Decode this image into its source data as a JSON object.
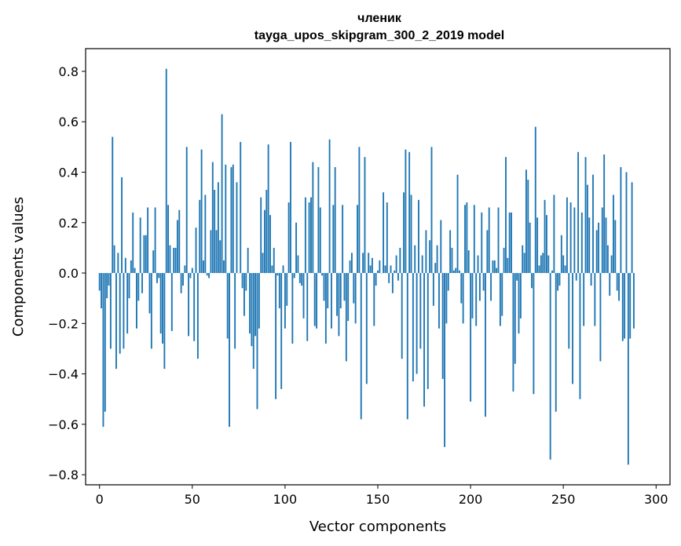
{
  "chart_data": {
    "type": "bar",
    "title": "членик",
    "subtitle": "tayga_upos_skipgram_300_2_2019 model",
    "xlabel": "Vector components",
    "ylabel": "Components values",
    "xlim": [
      -7.5,
      307.5
    ],
    "ylim": [
      -0.84,
      0.89
    ],
    "xticks": [
      0,
      50,
      100,
      150,
      200,
      250,
      300
    ],
    "xtick_labels": [
      "0",
      "50",
      "100",
      "150",
      "200",
      "250",
      "300"
    ],
    "yticks": [
      0.8,
      0.6,
      0.4,
      0.2,
      0.0,
      -0.2,
      -0.4,
      -0.6,
      -0.8
    ],
    "ytick_labels": [
      "0.8",
      "0.6",
      "0.4",
      "0.2",
      "0.0",
      "−0.2",
      "−0.4",
      "−0.6",
      "−0.8"
    ],
    "color": "#1f77b4",
    "values": [
      -0.07,
      -0.14,
      -0.61,
      -0.55,
      -0.1,
      -0.05,
      -0.3,
      0.54,
      0.11,
      -0.38,
      0.08,
      -0.32,
      0.38,
      -0.3,
      0.06,
      -0.24,
      -0.1,
      0.05,
      0.24,
      0.02,
      -0.22,
      -0.11,
      0.22,
      -0.08,
      0.15,
      0.15,
      0.26,
      -0.16,
      -0.3,
      0.09,
      0.26,
      -0.04,
      -0.02,
      -0.24,
      -0.28,
      -0.38,
      0.81,
      0.27,
      0.11,
      -0.23,
      0.1,
      0.1,
      0.21,
      0.25,
      -0.08,
      -0.05,
      0.03,
      0.5,
      -0.25,
      -0.02,
      0.02,
      -0.27,
      0.18,
      -0.34,
      0.29,
      0.49,
      0.05,
      0.31,
      -0.01,
      -0.02,
      0.17,
      0.44,
      0.33,
      0.17,
      0.36,
      0.13,
      0.63,
      0.05,
      0.43,
      -0.26,
      -0.61,
      0.42,
      0.43,
      -0.3,
      0.36,
      0.0,
      0.52,
      -0.06,
      -0.17,
      -0.07,
      0.1,
      -0.24,
      -0.29,
      -0.38,
      -0.25,
      -0.54,
      -0.22,
      0.3,
      0.08,
      0.25,
      0.33,
      0.51,
      0.23,
      0.03,
      0.1,
      -0.5,
      -0.01,
      -0.14,
      -0.46,
      0.03,
      -0.22,
      -0.13,
      0.28,
      0.52,
      -0.28,
      -0.02,
      0.2,
      0.07,
      -0.04,
      -0.05,
      -0.18,
      0.3,
      -0.27,
      0.28,
      0.3,
      0.44,
      -0.21,
      -0.22,
      0.42,
      0.26,
      -0.01,
      -0.11,
      -0.28,
      -0.14,
      0.53,
      -0.22,
      0.27,
      0.42,
      -0.17,
      -0.25,
      -0.14,
      0.27,
      -0.11,
      -0.35,
      -0.19,
      0.05,
      0.08,
      -0.12,
      -0.2,
      0.27,
      0.5,
      -0.58,
      0.08,
      0.46,
      -0.44,
      0.08,
      0.03,
      0.06,
      -0.21,
      -0.05,
      0.01,
      0.05,
      0.0,
      0.32,
      0.03,
      0.28,
      -0.04,
      0.03,
      -0.08,
      0.01,
      0.07,
      -0.03,
      0.1,
      -0.34,
      0.32,
      0.49,
      -0.58,
      0.48,
      0.31,
      -0.43,
      0.11,
      -0.4,
      0.29,
      -0.3,
      0.07,
      -0.53,
      0.17,
      -0.46,
      0.13,
      0.5,
      -0.13,
      0.04,
      0.11,
      -0.22,
      0.21,
      -0.42,
      -0.69,
      -0.2,
      -0.07,
      0.17,
      0.1,
      0.01,
      0.02,
      0.39,
      0.01,
      -0.12,
      -0.2,
      0.27,
      0.28,
      0.09,
      -0.51,
      -0.18,
      0.27,
      -0.21,
      0.07,
      -0.11,
      0.24,
      -0.07,
      -0.57,
      0.17,
      0.26,
      -0.11,
      0.05,
      0.05,
      0.02,
      0.26,
      -0.21,
      -0.17,
      0.1,
      0.46,
      0.06,
      0.24,
      0.24,
      -0.47,
      -0.36,
      -0.03,
      -0.24,
      -0.18,
      0.11,
      0.08,
      0.41,
      0.37,
      0.2,
      -0.06,
      -0.48,
      0.58,
      0.22,
      0.03,
      0.07,
      0.08,
      0.29,
      0.23,
      0.07,
      -0.74,
      0.01,
      0.31,
      -0.55,
      -0.07,
      -0.05,
      0.15,
      0.07,
      0.03,
      0.3,
      -0.3,
      0.28,
      -0.44,
      0.26,
      -0.03,
      0.48,
      -0.5,
      0.24,
      -0.21,
      0.46,
      0.35,
      0.22,
      -0.05,
      0.39,
      -0.21,
      0.17,
      0.2,
      -0.35,
      0.26,
      0.47,
      0.22,
      0.11,
      -0.09,
      0.07,
      0.31,
      0.21,
      -0.07,
      -0.11,
      0.42,
      -0.27,
      -0.26,
      0.4,
      -0.76,
      -0.26,
      0.36,
      -0.22
    ],
    "grid": false,
    "legend": "none"
  }
}
